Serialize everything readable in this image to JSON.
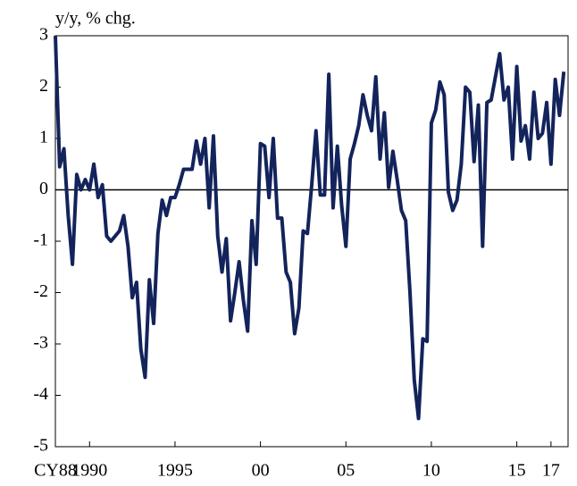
{
  "chart_data": {
    "type": "line",
    "y_label": "y/y, % chg.",
    "x": [
      1988,
      1988.25,
      1988.5,
      1988.75,
      1989,
      1989.25,
      1989.5,
      1989.75,
      1990,
      1990.25,
      1990.5,
      1990.75,
      1991,
      1991.25,
      1991.5,
      1991.75,
      1992,
      1992.25,
      1992.5,
      1992.75,
      1993,
      1993.25,
      1993.5,
      1993.75,
      1994,
      1994.25,
      1994.5,
      1994.75,
      1995,
      1995.25,
      1995.5,
      1995.75,
      1996,
      1996.25,
      1996.5,
      1996.75,
      1997,
      1997.25,
      1997.5,
      1997.75,
      1998,
      1998.25,
      1998.5,
      1998.75,
      1999,
      1999.25,
      1999.5,
      1999.75,
      2000,
      2000.25,
      2000.5,
      2000.75,
      2001,
      2001.25,
      2001.5,
      2001.75,
      2002,
      2002.25,
      2002.5,
      2002.75,
      2003,
      2003.25,
      2003.5,
      2003.75,
      2004,
      2004.25,
      2004.5,
      2004.75,
      2005,
      2005.25,
      2005.5,
      2005.75,
      2006,
      2006.25,
      2006.5,
      2006.75,
      2007,
      2007.25,
      2007.5,
      2007.75,
      2008,
      2008.25,
      2008.5,
      2008.75,
      2009,
      2009.25,
      2009.5,
      2009.75,
      2010,
      2010.25,
      2010.5,
      2010.75,
      2011,
      2011.25,
      2011.5,
      2011.75,
      2012,
      2012.25,
      2012.5,
      2012.75,
      2013,
      2013.25,
      2013.5,
      2013.75,
      2014,
      2014.25,
      2014.5,
      2014.75,
      2015,
      2015.25,
      2015.5,
      2015.75,
      2016,
      2016.25,
      2016.5,
      2016.75,
      2017,
      2017.25,
      2017.5,
      2017.75
    ],
    "series": [
      {
        "color": "#13235b",
        "values": [
          3.0,
          0.45,
          0.8,
          -0.5,
          -1.45,
          0.3,
          0.0,
          0.2,
          0.0,
          0.5,
          -0.15,
          0.1,
          -0.9,
          -1.0,
          -0.9,
          -0.8,
          -0.5,
          -1.1,
          -2.1,
          -1.8,
          -3.1,
          -3.65,
          -1.75,
          -2.6,
          -0.85,
          -0.2,
          -0.5,
          -0.15,
          -0.15,
          0.1,
          0.4,
          0.4,
          0.4,
          0.95,
          0.5,
          1.0,
          -0.35,
          1.05,
          -0.9,
          -1.6,
          -0.95,
          -2.55,
          -2.0,
          -1.4,
          -2.15,
          -2.75,
          -0.6,
          -1.45,
          0.9,
          0.85,
          -0.15,
          1.0,
          -0.55,
          -0.55,
          -1.6,
          -1.8,
          -2.8,
          -2.3,
          -0.8,
          -0.85,
          0.1,
          1.15,
          -0.1,
          -0.1,
          2.25,
          -0.35,
          0.85,
          -0.3,
          -1.1,
          0.6,
          0.9,
          1.25,
          1.85,
          1.45,
          1.15,
          2.2,
          0.6,
          1.5,
          0.05,
          0.75,
          0.2,
          -0.4,
          -0.6,
          -2.0,
          -3.7,
          -4.45,
          -2.9,
          -2.95,
          1.3,
          1.55,
          2.1,
          1.85,
          -0.05,
          -0.4,
          -0.2,
          0.5,
          2.0,
          1.9,
          0.55,
          1.65,
          -1.1,
          1.7,
          1.75,
          2.2,
          2.65,
          1.75,
          2.0,
          0.6,
          2.4,
          0.95,
          1.25,
          0.6,
          1.9,
          1.0,
          1.1,
          1.7,
          0.5,
          2.15,
          1.45,
          2.3
        ]
      }
    ],
    "xlim": [
      1988,
      2018
    ],
    "xticks": [
      {
        "value": 1988,
        "label": "CY88"
      },
      1990,
      1995,
      {
        "value": 2000,
        "label": "00"
      },
      {
        "value": 2005,
        "label": "05"
      },
      {
        "value": 2010,
        "label": "10"
      },
      {
        "value": 2015,
        "label": "15"
      },
      {
        "value": 2017,
        "label": "17"
      }
    ],
    "ylim": [
      -5,
      3
    ],
    "yticks": [
      -5,
      -4,
      -3,
      -2,
      -1,
      0,
      1,
      2,
      3
    ],
    "zero_line": true
  }
}
